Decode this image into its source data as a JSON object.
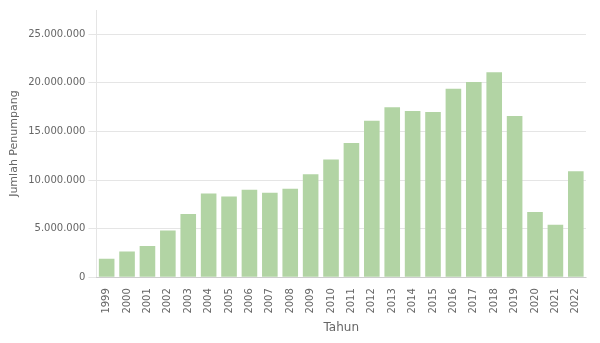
{
  "chart_data": {
    "type": "bar",
    "categories": [
      "1999",
      "2000",
      "2001",
      "2002",
      "2003",
      "2004",
      "2005",
      "2006",
      "2007",
      "2008",
      "2009",
      "2010",
      "2011",
      "2012",
      "2013",
      "2014",
      "2015",
      "2016",
      "2017",
      "2018",
      "2019",
      "2020",
      "2021",
      "2022"
    ],
    "values": [
      1900000,
      2650000,
      3200000,
      4800000,
      6500000,
      8600000,
      8300000,
      9000000,
      8700000,
      9100000,
      10600000,
      12100000,
      13800000,
      16100000,
      17500000,
      17100000,
      17000000,
      19400000,
      20100000,
      21100000,
      16600000,
      6700000,
      5400000,
      10900000
    ],
    "color": "#b2d4a4",
    "xlabel": "Tahun",
    "ylabel": "Jumlah Penumpang",
    "ylim": [
      0,
      27500000
    ],
    "yticks": [
      0,
      {
        "value": 5000000,
        "label": "5.000.000"
      },
      {
        "value": 10000000,
        "label": "10.000.000"
      },
      {
        "value": 15000000,
        "label": "15.000.000"
      },
      {
        "value": 20000000,
        "label": "20.000.000"
      },
      {
        "value": 25000000,
        "label": "25.000.000"
      }
    ],
    "grid": true
  }
}
